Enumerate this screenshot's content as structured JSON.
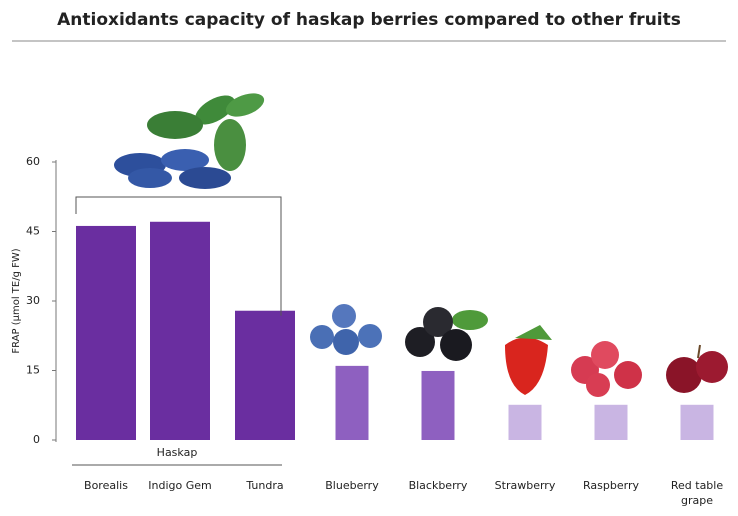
{
  "chart_data": {
    "type": "bar",
    "title": "Antioxidants capacity of haskap berries compared to other fruits",
    "y_label": "FRAP (µmol TE/g FW)",
    "categories": [
      "Borealis",
      "Indigo Gem",
      "Tundra",
      "Blueberry",
      "Blackberry",
      "Strawberry",
      "Raspberry",
      "Red table grape"
    ],
    "values": [
      46.2,
      47.1,
      27.9,
      16.0,
      14.9,
      7.6,
      7.6,
      7.6
    ],
    "colors": [
      "#6a2ea0",
      "#6a2ea0",
      "#6a2ea0",
      "#8e60c0",
      "#8e60c0",
      "#c9b5e3",
      "#c9b5e3",
      "#c9b5e3"
    ],
    "ylim": [
      0,
      60
    ],
    "yticks": [
      0,
      15,
      30,
      45,
      60
    ],
    "group": {
      "label": "Haskap",
      "from": "Borealis",
      "to": "Tundra"
    }
  }
}
